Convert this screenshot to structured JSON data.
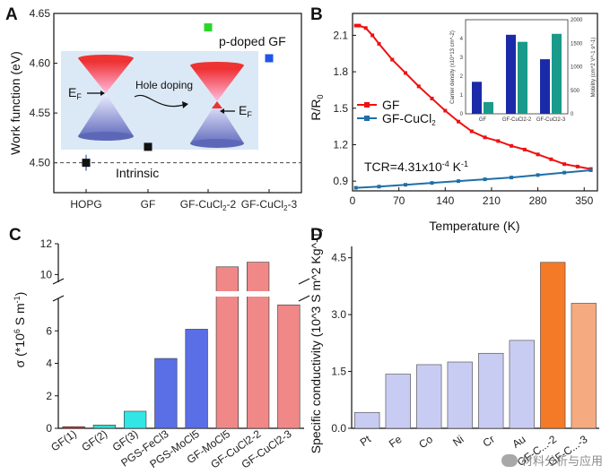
{
  "chart_data": [
    {
      "panel": "A",
      "type": "scatter",
      "ylabel": "Work function (eV)",
      "ylim": [
        4.47,
        4.65
      ],
      "yticks": [
        "4.50",
        "4.55",
        "4.60",
        "4.65"
      ],
      "categories": [
        "HOPG",
        "GF",
        "GF-CuCl2-2",
        "GF-CuCl2-3"
      ],
      "category_labels": [
        {
          "pre": "HOPG",
          "sub": "",
          "post": ""
        },
        {
          "pre": "GF",
          "sub": "",
          "post": ""
        },
        {
          "pre": "GF-CuCl",
          "sub": "2",
          "post": "-2"
        },
        {
          "pre": "GF-CuCl",
          "sub": "2",
          "post": "-3"
        }
      ],
      "points": [
        {
          "category": "HOPG",
          "value": 4.5,
          "err": 0.008,
          "color": "#111111"
        },
        {
          "category": "GF",
          "value": 4.516,
          "err": 0,
          "color": "#111111"
        },
        {
          "category": "GF-CuCl2-2",
          "value": 4.636,
          "err": 0.004,
          "color": "#2bd62b"
        },
        {
          "category": "GF-CuCl2-3",
          "value": 4.605,
          "err": 0.004,
          "color": "#1f55e8"
        }
      ],
      "reference_line": 4.5,
      "annotations": {
        "intrinsic": "Intrinsic",
        "pdoped": "p-doped GF",
        "ef": "E",
        "ef_sub": "F",
        "hole_doping": "Hole doping"
      }
    },
    {
      "panel": "B",
      "type": "line",
      "xlabel": "Temperature (K)",
      "ylabel_main": "R/R",
      "ylabel_sub": "0",
      "xlim": [
        0,
        370
      ],
      "ylim": [
        0.82,
        2.28
      ],
      "xticks": [
        "0",
        "70",
        "140",
        "210",
        "280",
        "350"
      ],
      "yticks": [
        "0.9",
        "1.2",
        "1.5",
        "1.8",
        "2.1"
      ],
      "series": [
        {
          "name": "GF",
          "color": "#ee1111",
          "marker": "square",
          "x": [
            5,
            10,
            20,
            30,
            40,
            60,
            80,
            100,
            120,
            140,
            160,
            180,
            200,
            220,
            240,
            260,
            280,
            300,
            320,
            340,
            360
          ],
          "y": [
            2.18,
            2.18,
            2.16,
            2.1,
            2.03,
            1.9,
            1.79,
            1.68,
            1.58,
            1.48,
            1.39,
            1.31,
            1.26,
            1.23,
            1.19,
            1.16,
            1.12,
            1.08,
            1.04,
            1.02,
            1.0
          ]
        },
        {
          "name": "GF-CuCl",
          "name_sub": "2",
          "color": "#1f6fa8",
          "marker": "square",
          "x": [
            5,
            40,
            80,
            120,
            160,
            200,
            240,
            280,
            320,
            360
          ],
          "y": [
            0.845,
            0.855,
            0.87,
            0.885,
            0.9,
            0.915,
            0.93,
            0.95,
            0.97,
            0.99
          ]
        }
      ],
      "tcr_text_pre": "TCR=4.31x10",
      "tcr_text_exp": "-4",
      "tcr_text_post": " K",
      "tcr_text_exp2": "-1",
      "inset": {
        "type": "bar",
        "categories": [
          "GF",
          "GF-CuCl2-2",
          "GF-CuCl2-3"
        ],
        "ylabel_left": "Carrier density (x10^13 cm^-2)",
        "ylabel_right": "Mobility (cm^2 V^-1 s^-1)",
        "yticks_left": [
          "0",
          "1",
          "2",
          "3",
          "4"
        ],
        "yticks_right": [
          "0",
          "500",
          "1000",
          "1500",
          "2000"
        ],
        "density_ylim": [
          0,
          5
        ],
        "mobility_ylim": [
          0,
          2000
        ],
        "density": [
          1.7,
          4.2,
          2.9
        ],
        "mobility": [
          250,
          1530,
          1700
        ],
        "density_color": "#1a2aa8",
        "mobility_color": "#1a9a8a"
      }
    },
    {
      "panel": "C",
      "type": "bar",
      "ylabel": "σ (*10^6 S m^-1)",
      "ylabel_pre": "σ (*10",
      "ylabel_exp": "6",
      "ylabel_mid": " S m",
      "ylabel_exp2": "-1",
      "ylabel_post": ")",
      "axis_break": true,
      "lower_ylim": [
        0,
        8
      ],
      "upper_ylim": [
        9.5,
        12
      ],
      "yticks_lower": [
        "0",
        "2",
        "4",
        "6"
      ],
      "yticks_upper": [
        "10",
        "12"
      ],
      "categories": [
        "GF(1)",
        "GF(2)",
        "GF(3)",
        "PGS-FeCl3",
        "PGS-MoCl5",
        "GF-MoCl5",
        "GF-CuCl2-2",
        "GF-CuCl2-3"
      ],
      "values": [
        0.1,
        0.2,
        1.05,
        4.3,
        6.1,
        10.5,
        10.8,
        7.6
      ],
      "colors": [
        "#e03030",
        "#33ddcc",
        "#33e6e6",
        "#5a6ee6",
        "#5a6ee6",
        "#f08888",
        "#f08888",
        "#f08888"
      ]
    },
    {
      "panel": "D",
      "type": "bar",
      "ylabel": "Specific conductivity (10^3 S m^2 Kg^-1)",
      "ylim": [
        0,
        4.8
      ],
      "yticks": [
        "0.0",
        "1.5",
        "3.0",
        "4.5"
      ],
      "categories": [
        "Pt",
        "Fe",
        "Co",
        "Ni",
        "Cr",
        "Au",
        "GF-CuCl2-2",
        "GF-CuCl2-3"
      ],
      "tick_labels": [
        "Pt",
        "Fe",
        "Co",
        "Ni",
        "Cr",
        "Au",
        "GF-C...-2",
        "GF-C...-3"
      ],
      "values": [
        0.42,
        1.43,
        1.68,
        1.75,
        1.98,
        2.32,
        4.38,
        3.3
      ],
      "colors": [
        "#c9ccf2",
        "#c9ccf2",
        "#c9ccf2",
        "#c9ccf2",
        "#c9ccf2",
        "#c9ccf2",
        "#f57a28",
        "#f5aa80"
      ]
    }
  ],
  "labels": {
    "a": "A",
    "b": "B",
    "c": "C",
    "d": "D"
  },
  "watermark": "材料分析与应用"
}
